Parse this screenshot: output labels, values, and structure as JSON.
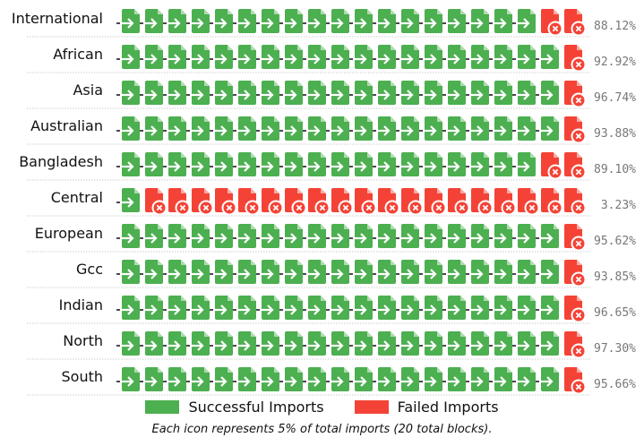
{
  "chart_data": {
    "type": "waffle",
    "icons_per_row": 20,
    "percent_per_icon": 5,
    "categories": [
      "International",
      "African",
      "Asia",
      "Australian",
      "Bangladesh",
      "Central",
      "European",
      "Gcc",
      "Indian",
      "North",
      "South"
    ],
    "series": [
      {
        "name": "Successful Imports",
        "color": "#4caf50",
        "values": [
          88.12,
          92.92,
          96.74,
          93.88,
          89.1,
          3.23,
          95.62,
          93.85,
          96.65,
          97.3,
          95.66
        ]
      },
      {
        "name": "Failed Imports",
        "color": "#f44336",
        "values": [
          11.88,
          7.08,
          3.26,
          6.12,
          10.9,
          96.77,
          4.38,
          6.15,
          3.35,
          2.7,
          4.34
        ]
      }
    ],
    "success_icon_counts": [
      18,
      19,
      19,
      19,
      18,
      1,
      19,
      19,
      19,
      19,
      19
    ],
    "percent_labels": [
      "88.12%",
      "92.92%",
      "96.74%",
      "93.88%",
      "89.10%",
      "3.23%",
      "95.62%",
      "93.85%",
      "96.65%",
      "97.30%",
      "95.66%"
    ]
  },
  "legend": {
    "success_label": "Successful Imports",
    "failed_label": "Failed Imports",
    "success_color": "#4caf50",
    "failed_color": "#f44336"
  },
  "footnote": "Each icon represents 5% of total imports (20 total blocks)."
}
